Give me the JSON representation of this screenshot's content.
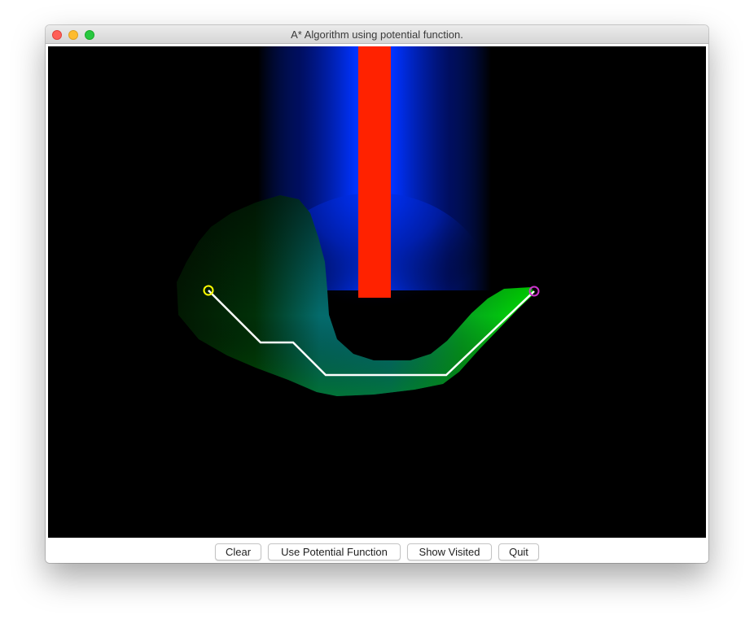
{
  "window": {
    "title": "A* Algorithm using potential function."
  },
  "toolbar": {
    "clear_label": "Clear",
    "potential_label": "Use Potential Function",
    "visited_label": "Show Visited",
    "quit_label": "Quit"
  },
  "colors": {
    "background": "#000000",
    "obstacle": "#ff2200",
    "potential_field": "#0033ff",
    "visited_dark": "#003300",
    "visited_bright": "#00e000",
    "path": "#ffffff",
    "start_marker": "#ffff00",
    "goal_marker": "#cc33cc"
  },
  "icons": {
    "close": "close-icon",
    "minimize": "minimize-icon",
    "zoom": "zoom-icon"
  }
}
